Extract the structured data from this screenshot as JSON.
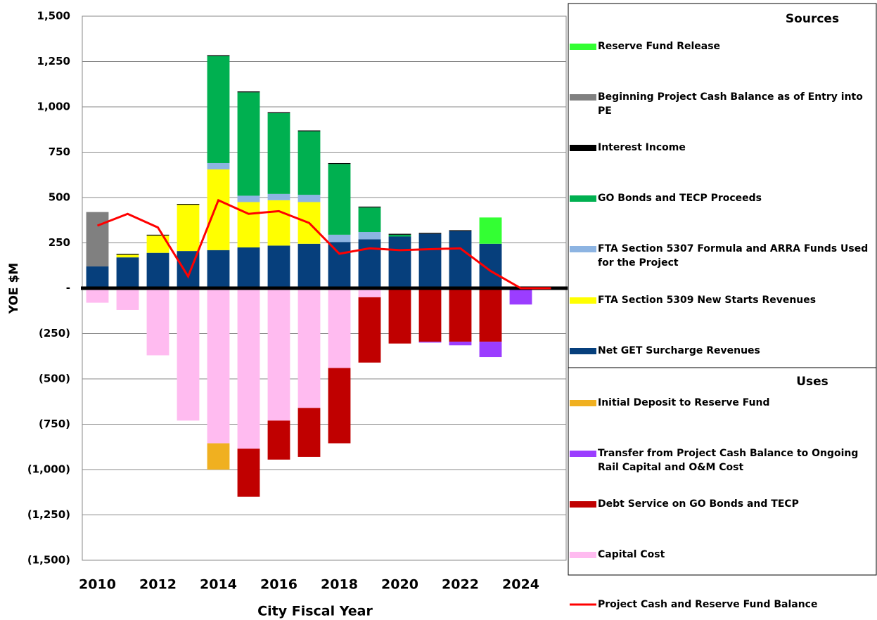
{
  "chart_data": {
    "type": "bar",
    "y_label": "YOE $M",
    "x_label": "City Fiscal Year",
    "categories": [
      "2010",
      null,
      "2012",
      null,
      "2014",
      null,
      "2016",
      null,
      "2018",
      null,
      "2020",
      null,
      "2022",
      null,
      "2024",
      null
    ],
    "ylim": [
      -1500,
      1500
    ],
    "yticks": [
      {
        "value": 1500,
        "label": "1,500"
      },
      {
        "value": 1250,
        "label": "1,250"
      },
      {
        "value": 1000,
        "label": "1,000"
      },
      750,
      500,
      250,
      {
        "value": 0,
        "label": "-"
      },
      {
        "value": -250,
        "label": "(250)"
      },
      {
        "value": -500,
        "label": "(500)"
      },
      {
        "value": -750,
        "label": "(750)"
      },
      {
        "value": -1000,
        "label": "(1,000)"
      },
      {
        "value": -1250,
        "label": "(1,250)"
      },
      {
        "value": -1500,
        "label": "(1,500)"
      }
    ],
    "grid": true,
    "legend_titles": [
      "Sources",
      "Uses"
    ],
    "series": [
      {
        "name": "Reserve Fund Release",
        "color": "#33ff33",
        "values": [
          0,
          0,
          0,
          0,
          0,
          0,
          0,
          0,
          0,
          0,
          0,
          0,
          0,
          145,
          0,
          0
        ]
      },
      {
        "name": "Beginning Project Cash Balance as of Entry into PE",
        "color": "#808080",
        "values": [
          300,
          0,
          0,
          0,
          0,
          0,
          0,
          0,
          0,
          0,
          0,
          0,
          0,
          0,
          0,
          0
        ]
      },
      {
        "name": "Interest Income",
        "color": "#000000",
        "values": [
          0,
          5,
          5,
          5,
          5,
          5,
          5,
          5,
          5,
          5,
          5,
          5,
          5,
          0,
          0,
          0
        ]
      },
      {
        "name": "GO Bonds and TECP Proceeds",
        "color": "#00b050",
        "values": [
          0,
          0,
          0,
          0,
          590,
          570,
          445,
          350,
          390,
          135,
          10,
          0,
          0,
          0,
          0,
          0
        ]
      },
      {
        "name": "FTA Section 5307 Formula and ARRA Funds Used for the Project",
        "color": "#8db4e2",
        "values": [
          0,
          0,
          0,
          0,
          35,
          35,
          35,
          40,
          40,
          40,
          0,
          0,
          0,
          0,
          0,
          0
        ]
      },
      {
        "name": "FTA Section 5309 New Starts Revenues",
        "color": "#ffff00",
        "values": [
          0,
          15,
          95,
          255,
          445,
          250,
          250,
          230,
          0,
          0,
          0,
          0,
          0,
          0,
          0,
          0
        ]
      },
      {
        "name": "Net GET Surcharge Revenues",
        "color": "#063f7c",
        "values": [
          120,
          170,
          195,
          205,
          210,
          225,
          235,
          245,
          255,
          270,
          285,
          300,
          315,
          245,
          0,
          0
        ]
      },
      {
        "name": "Initial Deposit to Reserve Fund",
        "color": "#f0b020",
        "values": [
          0,
          0,
          0,
          0,
          -145,
          0,
          0,
          0,
          0,
          0,
          0,
          0,
          0,
          0,
          0,
          0
        ]
      },
      {
        "name": "Transfer from Project Cash Balance to Ongoing Rail Capital and O&M Cost",
        "color": "#9b3dff",
        "values": [
          0,
          0,
          0,
          0,
          0,
          0,
          0,
          0,
          0,
          0,
          0,
          -5,
          -20,
          -85,
          -90,
          0
        ]
      },
      {
        "name": "Debt Service on GO Bonds and TECP",
        "color": "#c00000",
        "values": [
          0,
          0,
          0,
          0,
          0,
          -265,
          -215,
          -270,
          -415,
          -360,
          -305,
          -295,
          -295,
          -295,
          0,
          0
        ]
      },
      {
        "name": "Capital Cost",
        "color": "#ffbbf0",
        "values": [
          -80,
          -120,
          -370,
          -730,
          -855,
          -885,
          -730,
          -660,
          -440,
          -50,
          0,
          0,
          0,
          0,
          0,
          0
        ]
      },
      {
        "name": "Project Cash and Reserve Fund Balance",
        "type": "line",
        "color": "#ff0000",
        "values": [
          345,
          410,
          335,
          65,
          485,
          410,
          425,
          360,
          190,
          220,
          210,
          215,
          220,
          95,
          0,
          0
        ]
      }
    ]
  }
}
